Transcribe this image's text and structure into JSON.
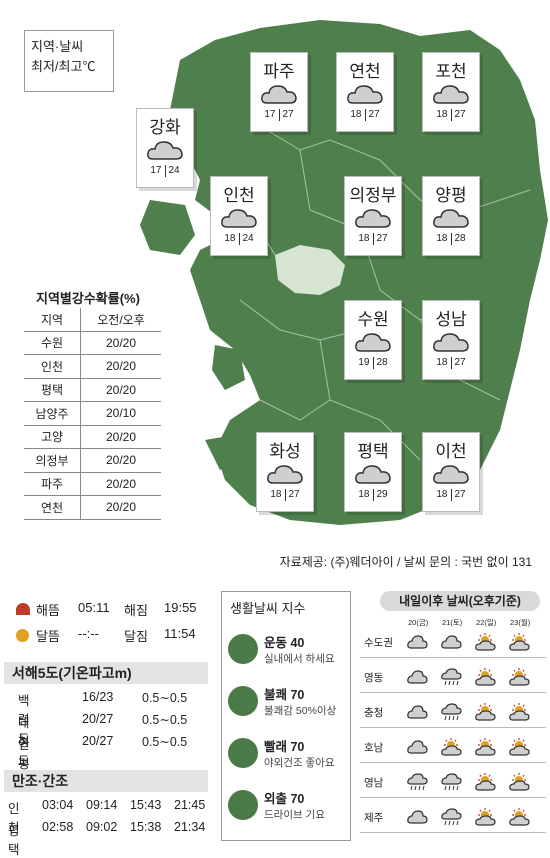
{
  "legend": {
    "line1": "지역·날씨",
    "line2": "최저/최고℃"
  },
  "cities": [
    {
      "name": "파주",
      "min": "17",
      "max": "27",
      "icon": "cloud-icon"
    },
    {
      "name": "연천",
      "min": "18",
      "max": "27",
      "icon": "cloud-icon"
    },
    {
      "name": "포천",
      "min": "18",
      "max": "27",
      "icon": "cloud-icon"
    },
    {
      "name": "강화",
      "min": "17",
      "max": "24",
      "icon": "cloud-icon"
    },
    {
      "name": "인천",
      "min": "18",
      "max": "24",
      "icon": "cloud-icon"
    },
    {
      "name": "의정부",
      "min": "18",
      "max": "27",
      "icon": "cloud-icon"
    },
    {
      "name": "양평",
      "min": "18",
      "max": "28",
      "icon": "cloud-icon"
    },
    {
      "name": "수원",
      "min": "19",
      "max": "28",
      "icon": "cloud-icon"
    },
    {
      "name": "성남",
      "min": "18",
      "max": "27",
      "icon": "cloud-icon"
    },
    {
      "name": "화성",
      "min": "18",
      "max": "27",
      "icon": "cloud-icon"
    },
    {
      "name": "평택",
      "min": "18",
      "max": "29",
      "icon": "cloud-icon"
    },
    {
      "name": "이천",
      "min": "18",
      "max": "27",
      "icon": "cloud-icon"
    }
  ],
  "rain": {
    "title": "지역별강수확률(%)",
    "header": [
      "지역",
      "오전/오후"
    ],
    "rows": [
      [
        "수원",
        "20/20"
      ],
      [
        "인천",
        "20/20"
      ],
      [
        "평택",
        "20/20"
      ],
      [
        "남양주",
        "20/10"
      ],
      [
        "고양",
        "20/20"
      ],
      [
        "의정부",
        "20/20"
      ],
      [
        "파주",
        "20/20"
      ],
      [
        "연천",
        "20/20"
      ]
    ]
  },
  "source": "자료제공: (주)웨더아이 / 날씨 문의 : 국번 없이 131",
  "sun": {
    "rise_label": "해뜸",
    "rise": "05:11",
    "set_label": "해짐",
    "set": "19:55"
  },
  "moon": {
    "rise_label": "달뜸",
    "rise": "--:--",
    "set_label": "달짐",
    "set": "11:54"
  },
  "sea": {
    "title": "서해5도(기온파고m)",
    "rows": [
      [
        "백령도",
        "16/23",
        "0.5∼0.5"
      ],
      [
        "대청도",
        "20/27",
        "0.5∼0.5"
      ],
      [
        "연평도",
        "20/27",
        "0.5∼0.5"
      ]
    ]
  },
  "tide": {
    "title": "만조·간조",
    "rows": [
      [
        "인천",
        "03:04",
        "09:14",
        "15:43",
        "21:45"
      ],
      [
        "평택",
        "02:58",
        "09:02",
        "15:38",
        "21:34"
      ]
    ]
  },
  "life": {
    "title": "생활날씨 지수",
    "items": [
      {
        "name": "운동 40",
        "desc": "실내에서 하세요",
        "icon": "exercise-icon"
      },
      {
        "name": "불쾌 70",
        "desc": "불쾌감 50%이상",
        "icon": "discomfort-icon"
      },
      {
        "name": "빨래 70",
        "desc": "야외건조 좋아요",
        "icon": "laundry-icon"
      },
      {
        "name": "외출 70",
        "desc": "드라이브 기요",
        "icon": "outing-icon"
      }
    ]
  },
  "forecast": {
    "title": "내일이후 날씨(오후기준)",
    "days": [
      "20(금)",
      "21(토)",
      "22(일)",
      "23(월)"
    ],
    "regions": [
      {
        "name": "수도권",
        "icons": [
          "cloud",
          "cloud",
          "sun-cloud",
          "sun-cloud"
        ]
      },
      {
        "name": "영동",
        "icons": [
          "cloud",
          "rain",
          "sun-cloud",
          "sun-cloud"
        ]
      },
      {
        "name": "충청",
        "icons": [
          "cloud",
          "rain",
          "sun-cloud",
          "sun-cloud"
        ]
      },
      {
        "name": "호남",
        "icons": [
          "cloud",
          "sun-cloud",
          "sun-cloud",
          "sun-cloud"
        ]
      },
      {
        "name": "영남",
        "icons": [
          "rain",
          "rain",
          "sun-cloud",
          "sun-cloud"
        ]
      },
      {
        "name": "제주",
        "icons": [
          "cloud",
          "rain",
          "sun-cloud",
          "sun-cloud"
        ]
      }
    ]
  },
  "colors": {
    "map": "#4f7f4c",
    "map_light": "#d6e4d2",
    "accent_sun": "#e0a020",
    "bar": "#e3e3e3"
  }
}
